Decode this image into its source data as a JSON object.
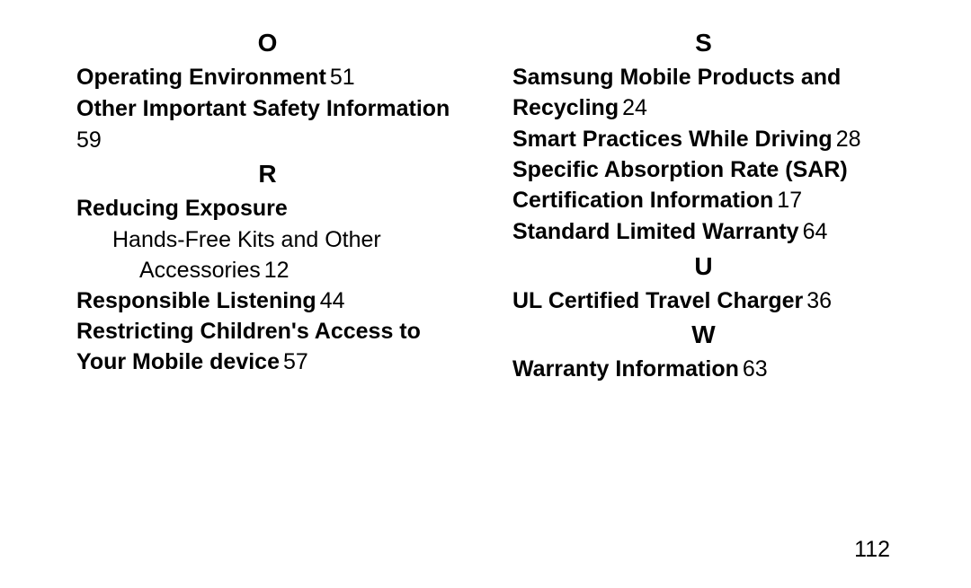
{
  "pageNumber": "112",
  "left": {
    "O": {
      "letter": "O",
      "entries": [
        {
          "title": "Operating Environment",
          "page": "51"
        },
        {
          "title": "Other Important Safety Information",
          "page": "59",
          "wrapPage": true
        }
      ]
    },
    "R": {
      "letter": "R",
      "entries": [
        {
          "title": "Reducing Exposure",
          "sub": {
            "text_l1": "Hands-Free Kits and Other",
            "text_l2": "Accessories",
            "page": "12"
          }
        },
        {
          "title": "Responsible Listening",
          "page": "44"
        },
        {
          "title": "Restricting Children's Access to Your Mobile device",
          "page": "57"
        }
      ]
    }
  },
  "right": {
    "S": {
      "letter": "S",
      "entries": [
        {
          "title": "Samsung Mobile Products and Recycling",
          "page": "24"
        },
        {
          "title": "Smart Practices While Driving",
          "page": "28"
        },
        {
          "title": "Specific Absorption Rate (SAR) Certification Information",
          "page": "17"
        },
        {
          "title": "Standard Limited Warranty",
          "page": "64"
        }
      ]
    },
    "U": {
      "letter": "U",
      "entries": [
        {
          "title": "UL Certified Travel Charger",
          "page": "36"
        }
      ]
    },
    "W": {
      "letter": "W",
      "entries": [
        {
          "title": "Warranty Information",
          "page": "63"
        }
      ]
    }
  }
}
